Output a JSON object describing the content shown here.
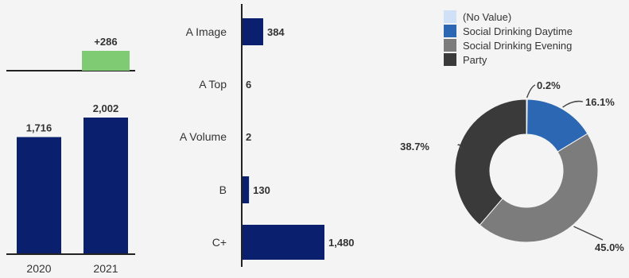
{
  "colors": {
    "bar": "#0a1f6e",
    "increase": "#7ecb74",
    "axis": "#222222",
    "text": "#333333",
    "leader": "#444444"
  },
  "chart_data": [
    {
      "type": "bar",
      "categories": [
        "2020",
        "2021"
      ],
      "values": [
        1716,
        2002
      ],
      "value_labels": [
        "1,716",
        "2,002"
      ],
      "variance": {
        "value": 286,
        "label": "+286"
      },
      "ylim": [
        0,
        2100
      ]
    },
    {
      "type": "bar",
      "orientation": "horizontal",
      "categories": [
        "A Image",
        "A Top",
        "A Volume",
        "B",
        "C+"
      ],
      "values": [
        384,
        6,
        2,
        130,
        1480
      ],
      "value_labels": [
        "384",
        "6",
        "2",
        "130",
        "1,480"
      ],
      "xlim": [
        0,
        1600
      ]
    },
    {
      "type": "pie",
      "variant": "donut",
      "legend": "top",
      "slices": [
        {
          "name": "(No Value)",
          "value": 0.2,
          "label": "0.2%",
          "color": "#cfe0f7"
        },
        {
          "name": "Social Drinking Daytime",
          "value": 16.1,
          "label": "16.1%",
          "color": "#2b67b3"
        },
        {
          "name": "Social Drinking Evening",
          "value": 45.0,
          "label": "45.0%",
          "color": "#7c7c7c"
        },
        {
          "name": "Party",
          "value": 38.7,
          "label": "38.7%",
          "color": "#3a3a3a"
        }
      ]
    }
  ]
}
